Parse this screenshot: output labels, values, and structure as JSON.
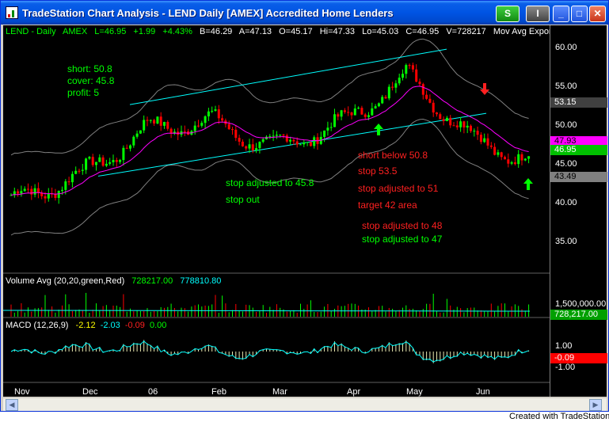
{
  "window": {
    "title": "TradeStation Chart Analysis - LEND  Daily  [AMEX] Accredited Home Lenders",
    "buttons": {
      "s": "S",
      "i": "I",
      "minimize": "_",
      "maximize": "□",
      "close": "✕"
    }
  },
  "header": {
    "symbol": "LEND - Daily",
    "exchange": "AMEX",
    "last": "L=46.95",
    "change": "+1.99",
    "pct": "+4.43%",
    "bid": "B=46.29",
    "ask": "A=47.13",
    "open": "O=45.17",
    "high": "Hi=47.33",
    "low": "Lo=45.03",
    "close": "C=46.95",
    "volume": "V=728217",
    "indicator": "Mov Avg Exponential",
    "ellipsis": "..."
  },
  "annotations": {
    "short": "short: 50.8",
    "cover": "cover: 45.8",
    "profit": "profit: 5",
    "stop_adj_458": "stop adjusted to 45.8",
    "stop_out": "stop out",
    "short_below": "short below 50.8",
    "stop_535": "stop 53.5",
    "stop_adj_51": "stop adjusted to 51",
    "target": "target 42 area",
    "stop_adj_48": "stop adjusted to 48",
    "stop_adj_47": "stop adjusted to 47"
  },
  "volume_panel": {
    "label": "Volume Avg  (20,20,green,Red)",
    "v1": "728217.00",
    "v2": "778810.80",
    "axis_top": "1,500,000.00",
    "axis_current": "728,217.00"
  },
  "macd_panel": {
    "label": "MACD  (12,26,9)",
    "v1": "-2.12",
    "v2": "-2.03",
    "v3": "-0.09",
    "v4": "0.00",
    "axis_1": "1.00",
    "axis_box": "-0.09",
    "axis_m1": "-1.00"
  },
  "price_axis": {
    "ticks": [
      "60.00",
      "55.00",
      "50.00",
      "45.00",
      "40.00",
      "35.00"
    ],
    "box_upper": "53.15",
    "box_magenta": "47.93",
    "box_green": "46.95",
    "box_lower": "43.49"
  },
  "months": [
    "Nov",
    "Dec",
    "06",
    "Feb",
    "Mar",
    "Apr",
    "May",
    "Jun"
  ],
  "footer": "Created with TradeStation",
  "colors": {
    "background": "#000000",
    "up_candle": "#00ff00",
    "down_candle": "#ff0000",
    "ema": "#ff00ff",
    "channel": "#00ffff",
    "envelope": "#808080",
    "macd": "#00ffff",
    "annotation_green": "#00ff00",
    "annotation_red": "#ff2020"
  },
  "chart_data": {
    "type": "candlestick",
    "title": "LEND - Daily",
    "ylim": [
      30,
      62
    ],
    "monthly_close_path": [
      {
        "month": "Nov",
        "price": 38
      },
      {
        "month": "Dec",
        "price": 42
      },
      {
        "month": "06",
        "price": 49
      },
      {
        "month": "Feb",
        "price": 50
      },
      {
        "month": "Mar",
        "price": 46
      },
      {
        "month": "Apr",
        "price": 50
      },
      {
        "month": "May",
        "price": 57
      },
      {
        "month": "Jun",
        "price": 47
      }
    ]
  }
}
